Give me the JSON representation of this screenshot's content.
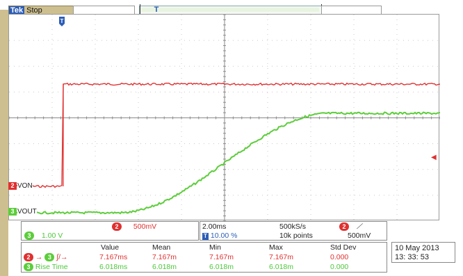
{
  "status": {
    "brand": "Tek",
    "state": "Stop"
  },
  "trigger_position_icon": "trigger-position-t-icon",
  "channels": {
    "ch2": {
      "number": "2",
      "label": "VON",
      "color": "#e03030",
      "scale": "500mV"
    },
    "ch3": {
      "number": "3",
      "label": "VOUT",
      "color": "#5ccd3a",
      "scale": "1.00 V"
    }
  },
  "horizontal": {
    "time_per_div": "2.00ms",
    "trigger_pos": "10.00 %",
    "sample_rate": "500kS/s",
    "record_length": "10k points"
  },
  "trigger": {
    "source": "2",
    "slope_icon": "rising-edge-icon",
    "level": "500mV"
  },
  "measurements": {
    "headers": [
      "Value",
      "Mean",
      "Min",
      "Max",
      "Std Dev"
    ],
    "rows": [
      {
        "label": "",
        "from": "2",
        "to": "3",
        "icon": "delay-rise-rise-icon",
        "cells": [
          "7.167ms",
          "7.167m",
          "7.167m",
          "7.167m",
          "0.000"
        ],
        "color": "#e03030"
      },
      {
        "label": "Rise Time",
        "channel": "3",
        "cells": [
          "6.018ms",
          "6.018m",
          "6.018m",
          "6.018m",
          "0.000"
        ],
        "color": "#4cc83a"
      }
    ]
  },
  "datetime": {
    "date": "10 May 2013",
    "time": "13: 33: 53"
  }
}
